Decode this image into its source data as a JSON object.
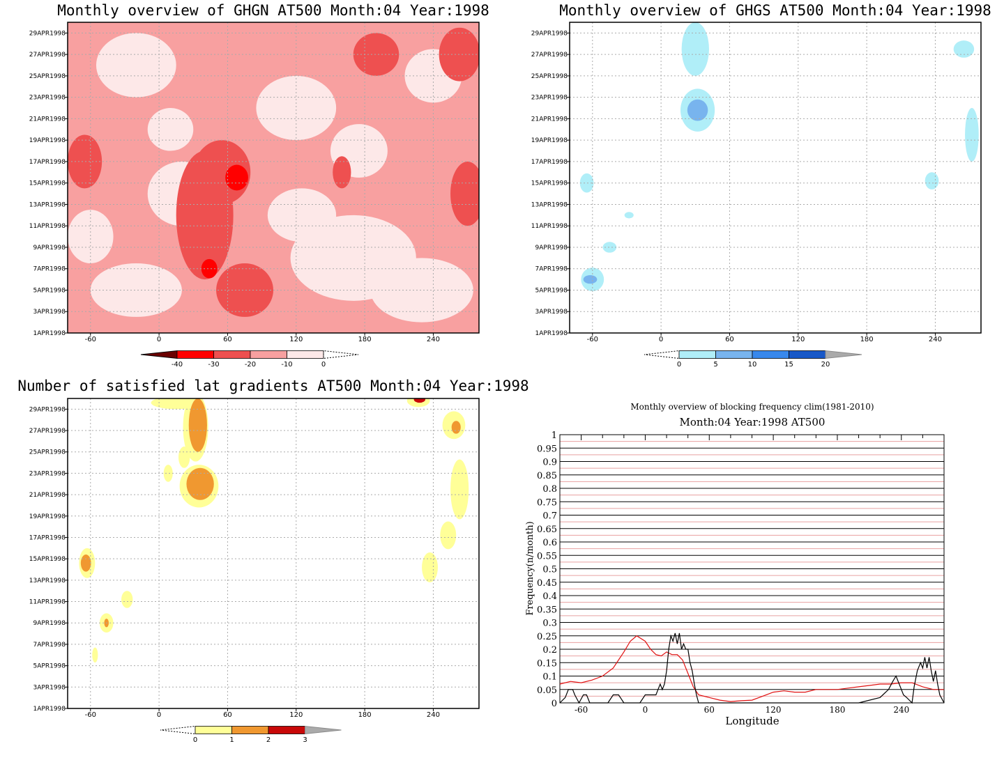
{
  "chart_data": [
    {
      "type": "heatmap",
      "title": "Monthly overview of GHGN AT500 Month:04 Year:1998",
      "x_ticks": [
        -60,
        0,
        60,
        120,
        180,
        240
      ],
      "xlim": [
        -80,
        280
      ],
      "y_ticks": [
        "1APR1998",
        "3APR1998",
        "5APR1998",
        "7APR1998",
        "9APR1998",
        "11APR1998",
        "13APR1998",
        "15APR1998",
        "17APR1998",
        "19APR1998",
        "21APR1998",
        "23APR1998",
        "25APR1998",
        "27APR1998",
        "29APR1998"
      ],
      "ylim": [
        1,
        30
      ],
      "colorbar": {
        "levels": [
          "-40",
          "-30",
          "-20",
          "-10",
          "0"
        ],
        "colors": [
          "#6b0000",
          "#ff0000",
          "#ee5050",
          "#f8a0a0",
          "#fde8e8"
        ]
      },
      "background_color": "#f8a0a0",
      "blobs": [
        {
          "x": -20,
          "y": 26,
          "rx": 35,
          "ry": 3,
          "level": 4
        },
        {
          "x": 10,
          "y": 20,
          "rx": 20,
          "ry": 2,
          "level": 4
        },
        {
          "x": 20,
          "y": 14,
          "rx": 30,
          "ry": 3,
          "level": 4
        },
        {
          "x": -60,
          "y": 10,
          "rx": 20,
          "ry": 2.5,
          "level": 4
        },
        {
          "x": -20,
          "y": 5,
          "rx": 40,
          "ry": 2.5,
          "level": 4
        },
        {
          "x": 120,
          "y": 22,
          "rx": 35,
          "ry": 3,
          "level": 4
        },
        {
          "x": 175,
          "y": 18,
          "rx": 25,
          "ry": 2.5,
          "level": 4
        },
        {
          "x": 170,
          "y": 8,
          "rx": 55,
          "ry": 4,
          "level": 4
        },
        {
          "x": 230,
          "y": 5,
          "rx": 45,
          "ry": 3,
          "level": 4
        },
        {
          "x": 240,
          "y": 25,
          "rx": 25,
          "ry": 2.5,
          "level": 4
        },
        {
          "x": 125,
          "y": 12,
          "rx": 30,
          "ry": 2.5,
          "level": 4
        },
        {
          "x": -65,
          "y": 17,
          "rx": 15,
          "ry": 2.5,
          "level": 2
        },
        {
          "x": 40,
          "y": 12,
          "rx": 25,
          "ry": 6,
          "level": 2
        },
        {
          "x": 55,
          "y": 16,
          "rx": 25,
          "ry": 3,
          "level": 2
        },
        {
          "x": 75,
          "y": 5,
          "rx": 25,
          "ry": 2.5,
          "level": 2
        },
        {
          "x": 270,
          "y": 14,
          "rx": 15,
          "ry": 3,
          "level": 2
        },
        {
          "x": 190,
          "y": 27,
          "rx": 20,
          "ry": 2,
          "level": 2
        },
        {
          "x": 263,
          "y": 27,
          "rx": 18,
          "ry": 2.5,
          "level": 2
        },
        {
          "x": 160,
          "y": 16,
          "rx": 8,
          "ry": 1.5,
          "level": 2
        },
        {
          "x": 68,
          "y": 15.5,
          "rx": 10,
          "ry": 1.2,
          "level": 1
        },
        {
          "x": 44,
          "y": 7,
          "rx": 7,
          "ry": 0.9,
          "level": 1
        }
      ]
    },
    {
      "type": "heatmap",
      "title": "Monthly overview of GHGS AT500 Month:04 Year:1998",
      "x_ticks": [
        -60,
        0,
        60,
        120,
        180,
        240
      ],
      "xlim": [
        -80,
        280
      ],
      "y_ticks": [
        "1APR1998",
        "3APR1998",
        "5APR1998",
        "7APR1998",
        "9APR1998",
        "11APR1998",
        "13APR1998",
        "15APR1998",
        "17APR1998",
        "19APR1998",
        "21APR1998",
        "23APR1998",
        "25APR1998",
        "27APR1998",
        "29APR1998"
      ],
      "ylim": [
        1,
        30
      ],
      "colorbar": {
        "levels": [
          "0",
          "5",
          "10",
          "15",
          "20"
        ],
        "colors": [
          "#b0eef8",
          "#78b4ee",
          "#3888ec",
          "#1858c8",
          "#aaaaaa"
        ]
      },
      "background_color": "#ffffff",
      "blobs": [
        {
          "x": 30,
          "y": 27.5,
          "rx": 12,
          "ry": 2.5,
          "level": 0
        },
        {
          "x": 32,
          "y": 21.8,
          "rx": 15,
          "ry": 2,
          "level": 0
        },
        {
          "x": 32,
          "y": 21.8,
          "rx": 9,
          "ry": 1,
          "level": 1
        },
        {
          "x": -65,
          "y": 15,
          "rx": 6,
          "ry": 0.9,
          "level": 0
        },
        {
          "x": -60,
          "y": 6,
          "rx": 10,
          "ry": 1.1,
          "level": 0
        },
        {
          "x": -62,
          "y": 6,
          "rx": 6,
          "ry": 0.4,
          "level": 1
        },
        {
          "x": -45,
          "y": 9,
          "rx": 6,
          "ry": 0.5,
          "level": 0
        },
        {
          "x": -28,
          "y": 12,
          "rx": 4,
          "ry": 0.3,
          "level": 0
        },
        {
          "x": 265,
          "y": 27.5,
          "rx": 9,
          "ry": 0.8,
          "level": 0
        },
        {
          "x": 272,
          "y": 19.5,
          "rx": 6,
          "ry": 2.5,
          "level": 0
        },
        {
          "x": 237,
          "y": 15.2,
          "rx": 6,
          "ry": 0.8,
          "level": 0
        }
      ]
    },
    {
      "type": "heatmap",
      "title": "Number of satisfied lat gradients AT500 Month:04 Year:1998",
      "x_ticks": [
        -60,
        0,
        60,
        120,
        180,
        240
      ],
      "xlim": [
        -80,
        280
      ],
      "y_ticks": [
        "1APR1998",
        "3APR1998",
        "5APR1998",
        "7APR1998",
        "9APR1998",
        "11APR1998",
        "13APR1998",
        "15APR1998",
        "17APR1998",
        "19APR1998",
        "21APR1998",
        "23APR1998",
        "25APR1998",
        "27APR1998",
        "29APR1998"
      ],
      "ylim": [
        1,
        30
      ],
      "colorbar": {
        "levels": [
          "0",
          "1",
          "2",
          "3"
        ],
        "colors": [
          "#ffff98",
          "#f09830",
          "#c80808",
          "#aaaaaa"
        ]
      },
      "background_color": "#ffffff",
      "blobs": [
        {
          "x": 15,
          "y": 29.6,
          "rx": 22,
          "ry": 0.6,
          "level": 0
        },
        {
          "x": 32,
          "y": 27.3,
          "rx": 11,
          "ry": 3.2,
          "level": 0
        },
        {
          "x": 34,
          "y": 27.5,
          "rx": 8,
          "ry": 2.5,
          "level": 1
        },
        {
          "x": 22,
          "y": 24.5,
          "rx": 5,
          "ry": 1,
          "level": 0
        },
        {
          "x": 35,
          "y": 21.8,
          "rx": 17,
          "ry": 2,
          "level": 0
        },
        {
          "x": 36,
          "y": 22,
          "rx": 12,
          "ry": 1.5,
          "level": 1
        },
        {
          "x": 8,
          "y": 23,
          "rx": 4,
          "ry": 0.8,
          "level": 0
        },
        {
          "x": -63,
          "y": 14.6,
          "rx": 7,
          "ry": 1.4,
          "level": 0
        },
        {
          "x": -64,
          "y": 14.6,
          "rx": 4.5,
          "ry": 0.8,
          "level": 1
        },
        {
          "x": -28,
          "y": 11.2,
          "rx": 5,
          "ry": 0.8,
          "level": 0
        },
        {
          "x": -46,
          "y": 9,
          "rx": 6,
          "ry": 0.9,
          "level": 0
        },
        {
          "x": -46,
          "y": 9,
          "rx": 2,
          "ry": 0.4,
          "level": 1
        },
        {
          "x": -56,
          "y": 6,
          "rx": 2.5,
          "ry": 0.7,
          "level": 0
        },
        {
          "x": 227,
          "y": 29.8,
          "rx": 10,
          "ry": 0.6,
          "level": 0
        },
        {
          "x": 228,
          "y": 29.9,
          "rx": 5,
          "ry": 0.3,
          "level": 2
        },
        {
          "x": 258,
          "y": 27.5,
          "rx": 10,
          "ry": 1.3,
          "level": 0
        },
        {
          "x": 260,
          "y": 27.3,
          "rx": 4,
          "ry": 0.6,
          "level": 1
        },
        {
          "x": 263,
          "y": 21.5,
          "rx": 8,
          "ry": 2.8,
          "level": 0
        },
        {
          "x": 253,
          "y": 17.2,
          "rx": 7,
          "ry": 1.3,
          "level": 0
        },
        {
          "x": 237,
          "y": 14.2,
          "rx": 7,
          "ry": 1.4,
          "level": 0
        }
      ]
    },
    {
      "type": "line",
      "title": "Monthly overview of blocking frequency clim(1981-2010)",
      "subtitle": "Month:04 Year:1998  AT500",
      "xlabel": "Longitude",
      "ylabel": "Frequency(n/month)",
      "xlim": [
        -80,
        280
      ],
      "ylim": [
        0,
        1
      ],
      "x_ticks": [
        -60,
        0,
        60,
        120,
        180,
        240
      ],
      "y_ticks": [
        "0",
        "0.05",
        "0.1",
        "0.15",
        "0.2",
        "0.25",
        "0.3",
        "0.35",
        "0.4",
        "0.45",
        "0.5",
        "0.55",
        "0.6",
        "0.65",
        "0.7",
        "0.75",
        "0.8",
        "0.85",
        "0.9",
        "0.95",
        "1"
      ],
      "grid": true,
      "series": [
        {
          "color": "#e01010",
          "x": [
            -80,
            -70,
            -60,
            -50,
            -40,
            -30,
            -20,
            -14,
            -8,
            0,
            5,
            10,
            15,
            20,
            25,
            30,
            35,
            40,
            45,
            50,
            60,
            70,
            80,
            90,
            100,
            110,
            120,
            130,
            140,
            150,
            160,
            170,
            180,
            190,
            200,
            210,
            220,
            230,
            240,
            250,
            260,
            270,
            280
          ],
          "y": [
            0.07,
            0.08,
            0.075,
            0.085,
            0.1,
            0.13,
            0.19,
            0.23,
            0.25,
            0.23,
            0.2,
            0.18,
            0.175,
            0.19,
            0.18,
            0.18,
            0.16,
            0.11,
            0.06,
            0.03,
            0.02,
            0.01,
            0.005,
            0.008,
            0.01,
            0.025,
            0.04,
            0.045,
            0.04,
            0.04,
            0.05,
            0.05,
            0.05,
            0.055,
            0.06,
            0.065,
            0.07,
            0.07,
            0.075,
            0.075,
            0.06,
            0.05,
            0.05
          ]
        },
        {
          "color": "#000000",
          "x": [
            -80,
            -75,
            -72,
            -68,
            -66,
            -62,
            -58,
            -55,
            -52,
            -45,
            -40,
            -35,
            -30,
            -25,
            -20,
            -10,
            -5,
            0,
            5,
            8,
            10,
            12,
            14,
            16,
            18,
            20,
            22,
            24,
            26,
            28,
            30,
            32,
            34,
            36,
            38,
            40,
            42,
            44,
            46,
            48,
            50,
            55,
            60,
            70,
            80,
            100,
            120,
            140,
            160,
            180,
            200,
            220,
            228,
            232,
            235,
            238,
            240,
            242,
            245,
            250,
            252,
            255,
            258,
            260,
            262,
            264,
            266,
            268,
            270,
            272,
            274,
            276,
            280
          ],
          "y": [
            0,
            0.02,
            0.05,
            0.05,
            0.03,
            0,
            0.03,
            0.03,
            0,
            0,
            0,
            0,
            0.03,
            0.03,
            0,
            0,
            0,
            0.03,
            0.03,
            0.03,
            0.03,
            0.05,
            0.07,
            0.05,
            0.07,
            0.12,
            0.2,
            0.25,
            0.23,
            0.26,
            0.22,
            0.26,
            0.2,
            0.22,
            0.2,
            0.2,
            0.15,
            0.12,
            0.07,
            0.03,
            0,
            0,
            0,
            0,
            0,
            0,
            0,
            0,
            0,
            0,
            0,
            0.02,
            0.05,
            0.08,
            0.1,
            0.07,
            0.05,
            0.03,
            0.02,
            0,
            0.06,
            0.12,
            0.15,
            0.13,
            0.17,
            0.13,
            0.17,
            0.12,
            0.08,
            0.12,
            0.07,
            0.03,
            0
          ]
        }
      ]
    }
  ]
}
